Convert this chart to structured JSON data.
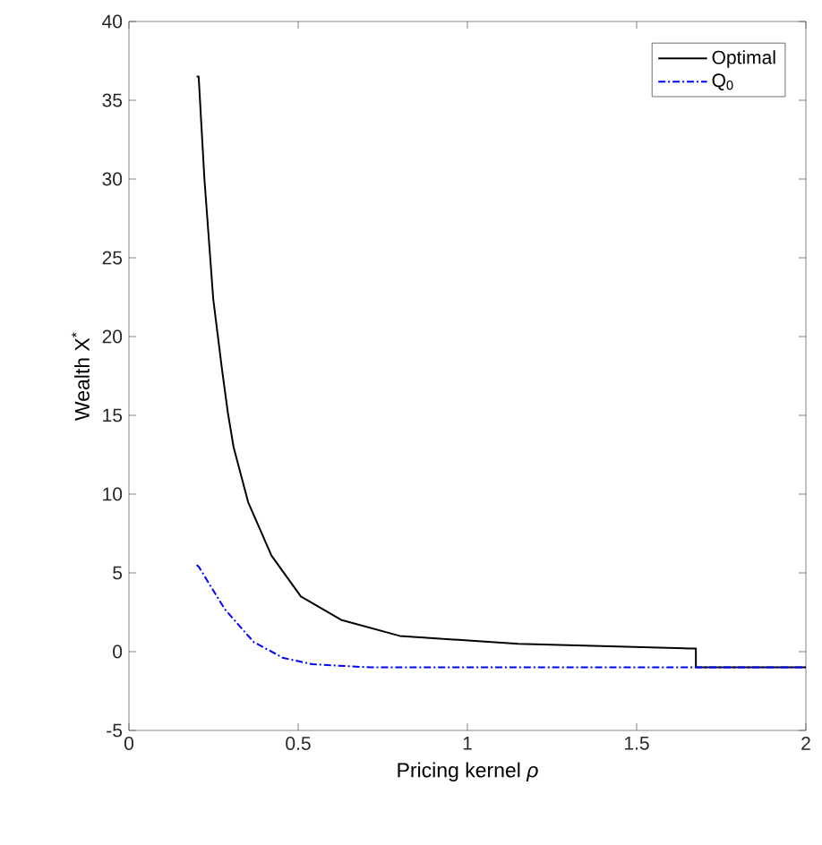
{
  "chart_data": {
    "type": "line",
    "xlabel": "Pricing kernel *ρ*",
    "ylabel": "Wealth X$^{*}$",
    "xlim": [
      0,
      2
    ],
    "ylim": [
      -5,
      40
    ],
    "xticks": [
      0,
      0.5,
      1,
      1.5,
      2
    ],
    "yticks": [
      -5,
      0,
      5,
      10,
      15,
      20,
      25,
      30,
      35,
      40
    ],
    "grid": false,
    "legend": "top right",
    "series": [
      {
        "name": "Optimal",
        "color": "#000000",
        "line_style": "solid",
        "x": [
          0.2,
          0.206,
          0.223,
          0.249,
          0.275,
          0.292,
          0.309,
          0.352,
          0.421,
          0.508,
          0.629,
          0.8,
          1.15,
          1.66,
          1.675,
          1.675,
          2
        ],
        "values": [
          36.5,
          36.5,
          30,
          22.4,
          17.9,
          15.2,
          13,
          9.5,
          6.1,
          3.5,
          2.0,
          1.0,
          0.5,
          0.2,
          0.2,
          -1,
          -1
        ]
      },
      {
        "name": "Q$_{0}$",
        "color": "#0000ff",
        "line_style": "dashdot",
        "x": [
          0.2,
          0.206,
          0.283,
          0.369,
          0.456,
          0.542,
          0.715,
          1.0,
          2
        ],
        "values": [
          5.5,
          5.4,
          2.7,
          0.6,
          -0.4,
          -0.8,
          -1,
          -1,
          -1
        ]
      }
    ]
  }
}
